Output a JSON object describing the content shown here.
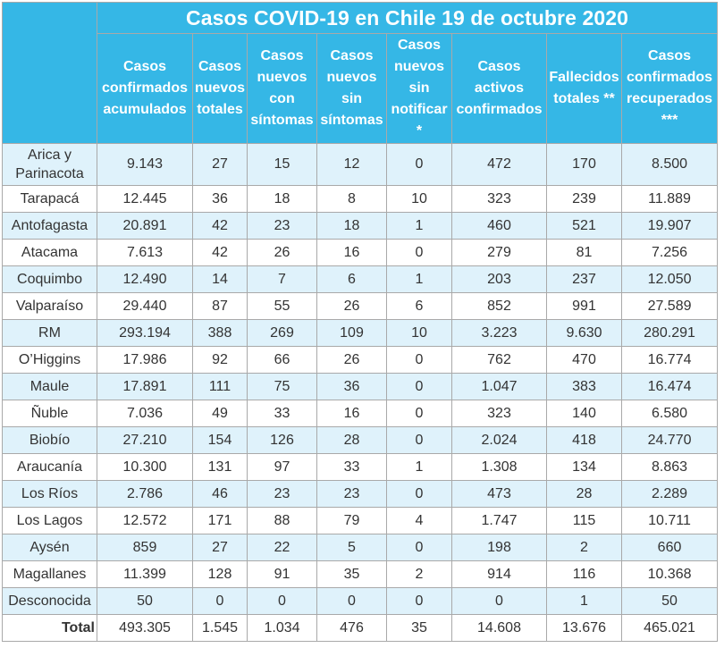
{
  "title": "Casos COVID-19 en Chile 19 de octubre 2020",
  "headers": [
    "Casos confirmados acumulados",
    "Casos nuevos totales",
    "Casos nuevos con síntomas",
    "Casos nuevos sin síntomas",
    "Casos nuevos sin notificar *",
    "Casos activos confirmados",
    "Fallecidos totales **",
    "Casos confirmados recuperados ***"
  ],
  "rows": [
    {
      "region": "Arica y Parinacota",
      "values": [
        "9.143",
        "27",
        "15",
        "12",
        "0",
        "472",
        "170",
        "8.500"
      ]
    },
    {
      "region": "Tarapacá",
      "values": [
        "12.445",
        "36",
        "18",
        "8",
        "10",
        "323",
        "239",
        "11.889"
      ]
    },
    {
      "region": "Antofagasta",
      "values": [
        "20.891",
        "42",
        "23",
        "18",
        "1",
        "460",
        "521",
        "19.907"
      ]
    },
    {
      "region": "Atacama",
      "values": [
        "7.613",
        "42",
        "26",
        "16",
        "0",
        "279",
        "81",
        "7.256"
      ]
    },
    {
      "region": "Coquimbo",
      "values": [
        "12.490",
        "14",
        "7",
        "6",
        "1",
        "203",
        "237",
        "12.050"
      ]
    },
    {
      "region": "Valparaíso",
      "values": [
        "29.440",
        "87",
        "55",
        "26",
        "6",
        "852",
        "991",
        "27.589"
      ]
    },
    {
      "region": "RM",
      "values": [
        "293.194",
        "388",
        "269",
        "109",
        "10",
        "3.223",
        "9.630",
        "280.291"
      ]
    },
    {
      "region": "O’Higgins",
      "values": [
        "17.986",
        "92",
        "66",
        "26",
        "0",
        "762",
        "470",
        "16.774"
      ]
    },
    {
      "region": "Maule",
      "values": [
        "17.891",
        "111",
        "75",
        "36",
        "0",
        "1.047",
        "383",
        "16.474"
      ]
    },
    {
      "region": "Ñuble",
      "values": [
        "7.036",
        "49",
        "33",
        "16",
        "0",
        "323",
        "140",
        "6.580"
      ]
    },
    {
      "region": "Biobío",
      "values": [
        "27.210",
        "154",
        "126",
        "28",
        "0",
        "2.024",
        "418",
        "24.770"
      ]
    },
    {
      "region": "Araucanía",
      "values": [
        "10.300",
        "131",
        "97",
        "33",
        "1",
        "1.308",
        "134",
        "8.863"
      ]
    },
    {
      "region": "Los Ríos",
      "values": [
        "2.786",
        "46",
        "23",
        "23",
        "0",
        "473",
        "28",
        "2.289"
      ]
    },
    {
      "region": "Los Lagos",
      "values": [
        "12.572",
        "171",
        "88",
        "79",
        "4",
        "1.747",
        "115",
        "10.711"
      ]
    },
    {
      "region": "Aysén",
      "values": [
        "859",
        "27",
        "22",
        "5",
        "0",
        "198",
        "2",
        "660"
      ]
    },
    {
      "region": "Magallanes",
      "values": [
        "11.399",
        "128",
        "91",
        "35",
        "2",
        "914",
        "116",
        "10.368"
      ]
    },
    {
      "region": "Desconocida",
      "values": [
        "50",
        "0",
        "0",
        "0",
        "0",
        "0",
        "1",
        "50"
      ]
    }
  ],
  "total": {
    "region": "Total",
    "values": [
      "493.305",
      "1.545",
      "1.034",
      "476",
      "35",
      "14.608",
      "13.676",
      "465.021"
    ]
  }
}
